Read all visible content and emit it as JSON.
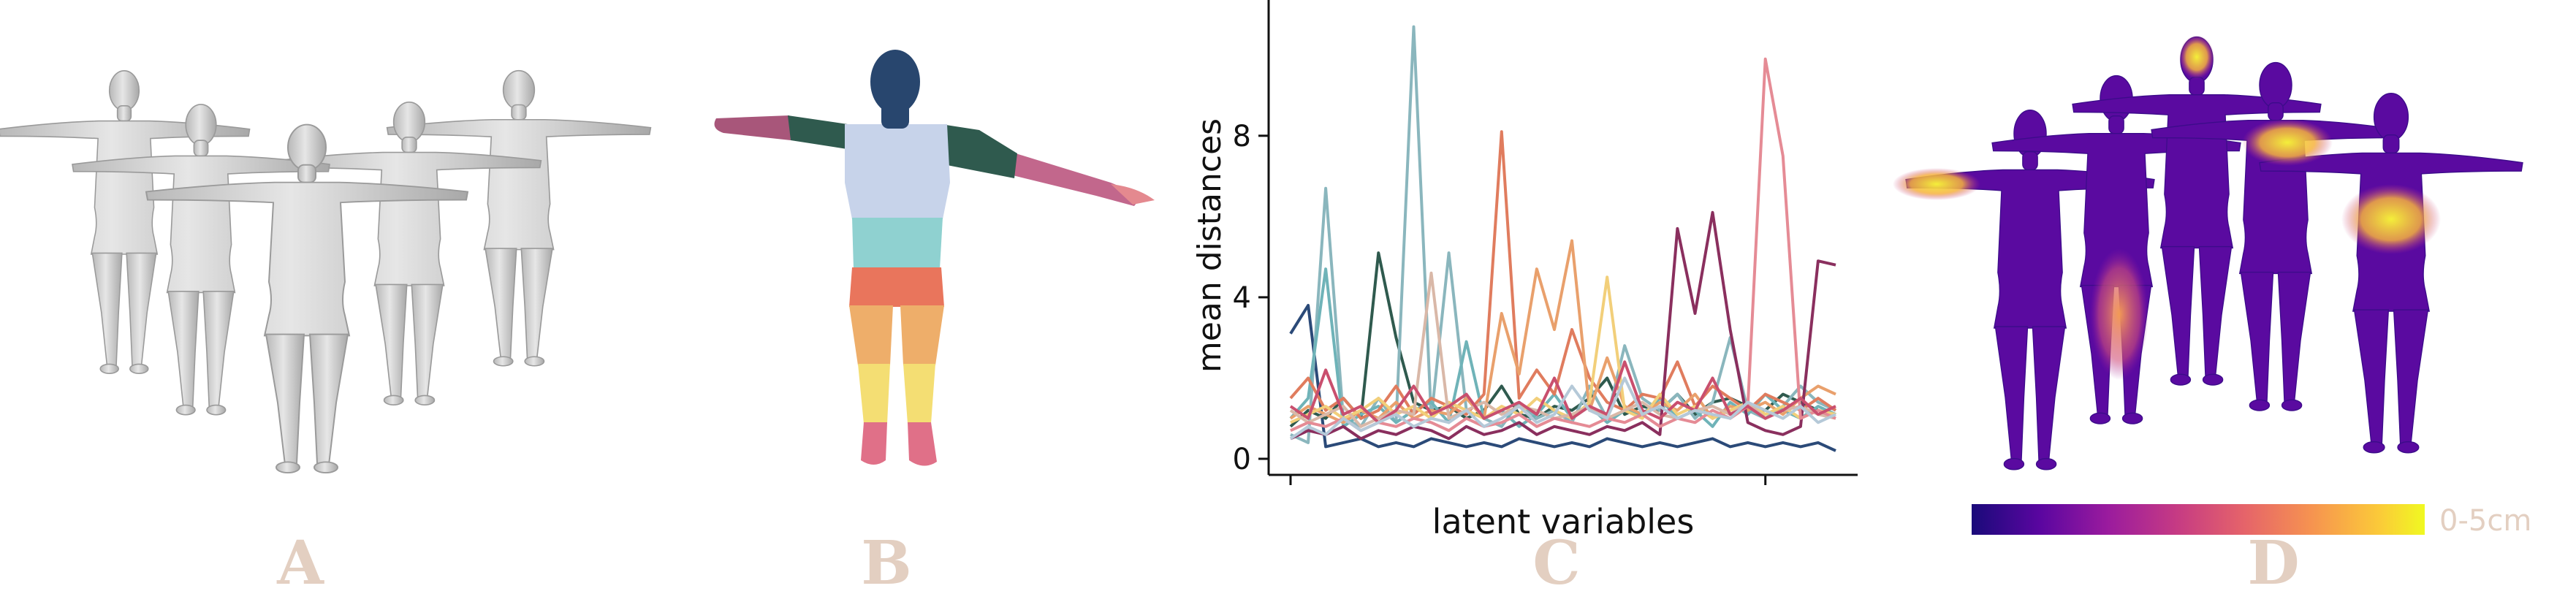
{
  "figure": {
    "panel_labels": [
      "A",
      "B",
      "C",
      "D"
    ],
    "colorbar_label": "0-5cm",
    "colors": {
      "letter": "#e3cfc1",
      "mesh_gray": "#c8c8c8",
      "part_head": "#28466e",
      "part_chest": "#c7d3ea",
      "part_abdomen": "#8fd1d0",
      "part_upper_arm": "#2f5a4e",
      "part_forearm": "#a8567a",
      "part_hips": "#e9755c",
      "part_legs": "#eeae6a",
      "part_knees": "#f4de73",
      "part_feet": "#e07088"
    },
    "heat_gradient": [
      "#1a0a7a",
      "#5a06a0",
      "#9a1b9e",
      "#c53a84",
      "#e5636a",
      "#f69350",
      "#fbca39",
      "#f0f921"
    ],
    "heat_hotspots": [
      "left-arm",
      "left-leg",
      "head",
      "chest",
      "belly"
    ]
  },
  "chart_data": {
    "type": "line",
    "xlabel": "latent variables",
    "ylabel": "mean distances",
    "yticks": [
      0,
      4,
      8
    ],
    "ylim": [
      0,
      11
    ],
    "xlim": [
      0,
      32
    ],
    "xticks_labeled": false,
    "legend": "none",
    "grid": false,
    "x": [
      1,
      2,
      3,
      4,
      5,
      6,
      7,
      8,
      9,
      10,
      11,
      12,
      13,
      14,
      15,
      16,
      17,
      18,
      19,
      20,
      21,
      22,
      23,
      24,
      25,
      26,
      27,
      28,
      29,
      30,
      31,
      32
    ],
    "series": [
      {
        "color": "#2b4a78",
        "values": [
          3.1,
          3.8,
          0.3,
          0.4,
          0.5,
          0.3,
          0.4,
          0.3,
          0.5,
          0.4,
          0.3,
          0.4,
          0.3,
          0.5,
          0.4,
          0.3,
          0.4,
          0.3,
          0.5,
          0.4,
          0.3,
          0.4,
          0.3,
          0.4,
          0.5,
          0.3,
          0.4,
          0.3,
          0.4,
          0.3,
          0.4,
          0.2
        ]
      },
      {
        "color": "#2f5a4e",
        "values": [
          0.8,
          1.2,
          1.0,
          1.5,
          1.0,
          5.1,
          3.0,
          1.4,
          1.2,
          1.3,
          1.0,
          1.2,
          1.8,
          1.1,
          1.0,
          1.3,
          1.2,
          1.5,
          2.0,
          1.1,
          1.3,
          1.2,
          1.6,
          1.1,
          1.4,
          1.5,
          1.3,
          1.2,
          1.6,
          1.4,
          1.2,
          1.1
        ]
      },
      {
        "color": "#8ab6bd",
        "values": [
          0.6,
          0.4,
          6.7,
          1.0,
          0.8,
          1.5,
          0.9,
          10.7,
          1.0,
          5.1,
          1.2,
          1.0,
          0.8,
          1.4,
          1.0,
          1.2,
          0.9,
          1.8,
          1.0,
          2.8,
          1.5,
          1.2,
          1.6,
          1.0,
          1.4,
          3.0,
          1.2,
          1.0,
          1.3,
          1.8,
          1.4,
          1.2
        ]
      },
      {
        "color": "#6fb3b8",
        "values": [
          1.0,
          1.5,
          4.7,
          0.8,
          1.1,
          1.3,
          0.9,
          1.2,
          1.4,
          0.9,
          2.9,
          1.0,
          1.2,
          0.8,
          1.1,
          1.6,
          1.0,
          1.3,
          0.9,
          1.2,
          1.1,
          1.5,
          1.0,
          1.2,
          0.8,
          1.4,
          1.1,
          1.6,
          1.2,
          1.0,
          1.3,
          1.1
        ]
      },
      {
        "color": "#e07c5e",
        "values": [
          1.5,
          2.0,
          1.2,
          1.5,
          1.0,
          1.2,
          1.8,
          1.1,
          1.5,
          1.3,
          1.1,
          1.6,
          8.1,
          1.5,
          2.2,
          1.6,
          3.2,
          2.0,
          1.4,
          1.2,
          1.6,
          1.5,
          2.4,
          1.3,
          1.8,
          1.5,
          1.2,
          1.6,
          1.4,
          1.2,
          1.5,
          1.2
        ]
      },
      {
        "color": "#e9a06c",
        "values": [
          1.0,
          1.3,
          1.1,
          0.9,
          1.2,
          1.0,
          1.4,
          1.0,
          1.2,
          1.1,
          1.5,
          1.0,
          3.6,
          2.1,
          4.7,
          3.2,
          5.4,
          1.2,
          2.5,
          1.3,
          1.1,
          1.4,
          1.2,
          1.6,
          1.0,
          1.3,
          1.2,
          1.4,
          1.1,
          1.5,
          1.8,
          1.6
        ]
      },
      {
        "color": "#f2cf7a",
        "values": [
          0.9,
          1.1,
          1.3,
          1.0,
          1.2,
          1.5,
          1.1,
          1.3,
          1.0,
          1.4,
          1.2,
          1.0,
          1.3,
          1.1,
          1.5,
          1.2,
          1.0,
          1.4,
          4.5,
          1.2,
          1.0,
          1.6,
          1.1,
          1.3,
          1.0,
          1.2,
          1.4,
          1.1,
          1.3,
          1.0,
          1.2,
          1.1
        ]
      },
      {
        "color": "#d9b8a8",
        "values": [
          1.2,
          0.9,
          1.1,
          1.3,
          0.8,
          1.0,
          1.2,
          1.1,
          4.6,
          1.0,
          1.2,
          1.4,
          1.1,
          1.3,
          1.2,
          1.0,
          1.1,
          1.3,
          1.0,
          1.2,
          1.4,
          1.1,
          1.0,
          1.2,
          1.3,
          1.1,
          1.4,
          1.0,
          1.2,
          1.3,
          1.1,
          1.0
        ]
      },
      {
        "color": "#8a2f5e",
        "values": [
          0.5,
          0.7,
          0.6,
          0.8,
          0.5,
          0.7,
          0.6,
          0.8,
          0.7,
          0.5,
          0.8,
          0.6,
          0.7,
          0.9,
          0.6,
          0.8,
          0.7,
          0.6,
          0.8,
          0.7,
          0.9,
          0.6,
          5.7,
          3.6,
          6.1,
          3.2,
          0.9,
          0.7,
          0.6,
          0.8,
          4.9,
          4.8
        ]
      },
      {
        "color": "#e58b95",
        "values": [
          0.7,
          0.9,
          0.8,
          1.0,
          0.7,
          0.9,
          0.8,
          1.0,
          0.9,
          0.7,
          1.0,
          0.8,
          0.9,
          1.1,
          0.8,
          1.0,
          0.9,
          0.8,
          1.0,
          0.9,
          1.1,
          0.8,
          1.0,
          0.9,
          1.2,
          1.0,
          1.3,
          9.9,
          7.5,
          1.0,
          1.2,
          1.0
        ]
      },
      {
        "color": "#c94f6e",
        "values": [
          1.3,
          1.0,
          2.2,
          1.1,
          1.3,
          0.9,
          1.2,
          1.8,
          1.1,
          1.3,
          1.6,
          1.0,
          1.2,
          1.4,
          1.1,
          2.0,
          1.0,
          1.3,
          1.1,
          2.4,
          1.2,
          1.0,
          1.4,
          1.2,
          2.0,
          1.1,
          1.3,
          1.0,
          1.2,
          1.5,
          1.1,
          1.3
        ]
      },
      {
        "color": "#b5c9d8",
        "values": [
          0.5,
          0.8,
          0.6,
          1.0,
          0.7,
          0.9,
          1.1,
          0.8,
          1.0,
          0.9,
          1.2,
          0.8,
          1.0,
          1.3,
          0.9,
          1.1,
          1.8,
          1.2,
          1.0,
          2.0,
          1.1,
          1.3,
          1.0,
          1.2,
          1.1,
          1.0,
          1.4,
          1.2,
          1.0,
          1.3,
          0.9,
          1.1
        ]
      }
    ]
  }
}
